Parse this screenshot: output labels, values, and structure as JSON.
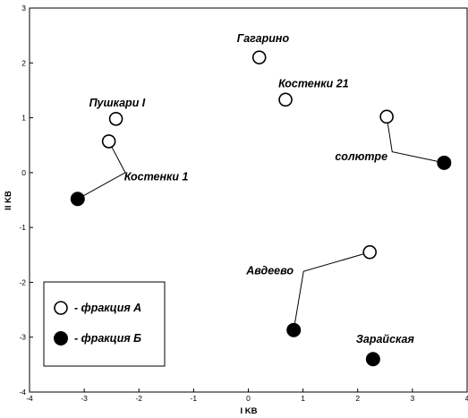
{
  "chart_data": {
    "type": "scatter",
    "xlabel": "I KB",
    "ylabel": "II KB",
    "xlim": [
      -4,
      4
    ],
    "ylim": [
      -4,
      3
    ],
    "xticks": [
      "-4",
      "-3",
      "-2",
      "-1",
      "0",
      "1",
      "2",
      "3",
      "4"
    ],
    "yticks": [
      "-4",
      "-3",
      "-2",
      "-1",
      "0",
      "1",
      "2",
      "3"
    ],
    "grid": false,
    "legend_position": "bottom-left",
    "series": [
      {
        "name": "- фракция А",
        "marker": "open-circle",
        "points": [
          {
            "label": "Гагарино",
            "x": 0.2,
            "y": 2.1
          },
          {
            "label": "Костенки 21",
            "x": 0.68,
            "y": 1.33
          },
          {
            "label": "Пушкари I",
            "x": -2.42,
            "y": 0.98
          },
          {
            "label": "",
            "x": -2.55,
            "y": 0.57
          },
          {
            "label": "",
            "x": 2.53,
            "y": 1.02
          },
          {
            "label": "",
            "x": 2.22,
            "y": -1.45
          }
        ]
      },
      {
        "name": "- фракция Б",
        "marker": "filled-circle",
        "points": [
          {
            "label": "Костенки 1",
            "x": -3.12,
            "y": -0.48
          },
          {
            "label": "солютре",
            "x": 3.58,
            "y": 0.18
          },
          {
            "label": "Авдеево",
            "x": 0.83,
            "y": -2.87
          },
          {
            "label": "Зарайская",
            "x": 2.28,
            "y": -3.4
          }
        ]
      }
    ],
    "callouts": [
      {
        "label": "Костенки 1",
        "points": [
          [
            -3.12,
            -0.48
          ],
          [
            -2.55,
            0.57
          ]
        ]
      },
      {
        "label": "солютре",
        "points": [
          [
            3.58,
            0.18
          ],
          [
            2.53,
            1.02
          ]
        ]
      },
      {
        "label": "Авдеево",
        "points": [
          [
            0.83,
            -2.87
          ],
          [
            2.22,
            -1.45
          ]
        ]
      }
    ]
  },
  "colors": {
    "marker_fill": "#000000",
    "marker_stroke": "#000000",
    "background": "#ffffff"
  }
}
